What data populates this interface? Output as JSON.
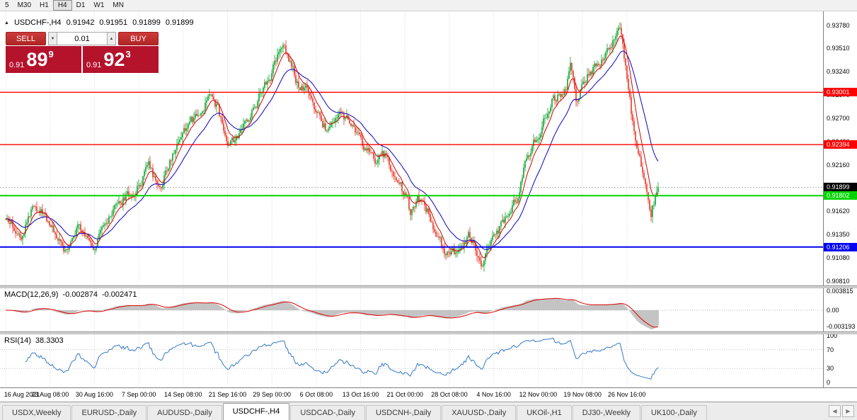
{
  "icons": {
    "title_marker": "▲",
    "spin_up": "▲",
    "spin_down": "▼",
    "scroll_left": "◀",
    "scroll_right": "▶"
  },
  "colors": {
    "candle_up": "#0aa32b",
    "candle_down": "#ea3323",
    "ma_fast": "#d40000",
    "ma_slow": "#0d00c4",
    "bid_badge": "#000000",
    "macd_hist": "#b0b0b0",
    "macd_signal": "#e00000",
    "rsi_line": "#3579c8",
    "sell_buy_button": "#cd3a3a",
    "price_box": "#b5122c",
    "grid": "#d9d9d9"
  },
  "toolbar": {
    "timeframes": [
      {
        "label": "5",
        "active": false
      },
      {
        "label": "M30",
        "active": false
      },
      {
        "label": "H1",
        "active": false
      },
      {
        "label": "H4",
        "active": true
      },
      {
        "label": "D1",
        "active": false
      },
      {
        "label": "W1",
        "active": false
      },
      {
        "label": "MN",
        "active": false
      }
    ]
  },
  "chart_title": {
    "symbol_tf": "USDCHF-,H4",
    "open": "0.91942",
    "high": "0.91951",
    "low": "0.91899",
    "close": "0.91899"
  },
  "trade_panel": {
    "sell_label": "SELL",
    "buy_label": "BUY",
    "volume": "0.01",
    "sell_price_main": "0.91",
    "sell_price_pips": "89",
    "sell_price_point": "9",
    "buy_price_main": "0.91",
    "buy_price_pips": "92",
    "buy_price_point": "3"
  },
  "price_axis": {
    "labels": [
      "0.93780",
      "0.93510",
      "0.93240",
      "0.92970",
      "0.92700",
      "0.92430",
      "0.92160",
      "0.91890",
      "0.91620",
      "0.91350",
      "0.91080",
      "0.90810"
    ]
  },
  "hlines": [
    {
      "price": 0.93001,
      "label": "0.93001",
      "color": "#ff0000",
      "width": 1.4
    },
    {
      "price": 0.92394,
      "label": "0.92394",
      "color": "#ff0000",
      "width": 1.4
    },
    {
      "price": 0.91802,
      "label": "0.91802",
      "color": "#00d500",
      "width": 2
    },
    {
      "price": 0.91206,
      "label": "0.91206",
      "color": "#0000f0",
      "width": 2
    }
  ],
  "current_price": {
    "price": 0.91899,
    "label": "0.91899",
    "badge_color": "#000000"
  },
  "macd": {
    "name": "MACD(12,26,9)",
    "value_main": "-0.002874",
    "value_signal": "-0.002471",
    "axis": [
      "0.003815",
      "0.00",
      "-0.003193"
    ]
  },
  "rsi": {
    "name": "RSI(14)",
    "value": "38.3303",
    "axis": [
      "100",
      "70",
      "30",
      "0"
    ],
    "levels": [
      70,
      30
    ]
  },
  "time_axis": {
    "labels": [
      "16 Aug 2021",
      "23 Aug 08:00",
      "30 Aug 16:00",
      "7 Sep 00:00",
      "14 Sep 08:00",
      "21 Sep 16:00",
      "29 Sep 00:00",
      "6 Oct 08:00",
      "13 Oct 16:00",
      "21 Oct 00:00",
      "28 Oct 08:00",
      "4 Nov 16:00",
      "12 Nov 00:00",
      "19 Nov 08:00",
      "26 Nov 16:00"
    ]
  },
  "tabs": {
    "items": [
      "USDX,Weekly",
      "EURUSD-,Daily",
      "AUDUSD-,Daily",
      "USDCHF-,H4",
      "USDCAD-,Daily",
      "USDCNH-,Daily",
      "XAUUSD-,Daily",
      "UKOil-,H1",
      "DJ30-,Weekly",
      "UK100-,Daily"
    ],
    "active_index": 3
  },
  "chart_data": {
    "type": "candlestick",
    "symbol": "USDCHF-",
    "timeframe": "H4",
    "bars": 462,
    "last_close": 0.91899,
    "price_range": [
      0.9076,
      0.9394
    ],
    "ma_fast_period": 8,
    "ma_slow_period": 24,
    "macd_axis_max": 0.00382,
    "anchors": [
      [
        0,
        0.9148
      ],
      [
        11,
        0.9138
      ],
      [
        21,
        0.9172
      ],
      [
        31,
        0.915
      ],
      [
        41,
        0.9118
      ],
      [
        51,
        0.9142
      ],
      [
        62,
        0.9122
      ],
      [
        71,
        0.9145
      ],
      [
        81,
        0.9172
      ],
      [
        94,
        0.919
      ],
      [
        101,
        0.9222
      ],
      [
        108,
        0.9185
      ],
      [
        116,
        0.9218
      ],
      [
        125,
        0.9258
      ],
      [
        136,
        0.9272
      ],
      [
        146,
        0.93
      ],
      [
        152,
        0.927
      ],
      [
        157,
        0.9242
      ],
      [
        166,
        0.925
      ],
      [
        176,
        0.9285
      ],
      [
        188,
        0.9322
      ],
      [
        196,
        0.936
      ],
      [
        206,
        0.9312
      ],
      [
        213,
        0.93
      ],
      [
        220,
        0.9272
      ],
      [
        228,
        0.9256
      ],
      [
        236,
        0.9282
      ],
      [
        243,
        0.9266
      ],
      [
        251,
        0.9242
      ],
      [
        261,
        0.9218
      ],
      [
        268,
        0.9228
      ],
      [
        276,
        0.9196
      ],
      [
        282,
        0.9183
      ],
      [
        286,
        0.916
      ],
      [
        291,
        0.9178
      ],
      [
        298,
        0.9162
      ],
      [
        306,
        0.913
      ],
      [
        314,
        0.9108
      ],
      [
        321,
        0.9122
      ],
      [
        328,
        0.9133
      ],
      [
        333,
        0.9118
      ],
      [
        336,
        0.9098
      ],
      [
        345,
        0.9128
      ],
      [
        353,
        0.9152
      ],
      [
        361,
        0.9176
      ],
      [
        368,
        0.9222
      ],
      [
        377,
        0.9255
      ],
      [
        386,
        0.929
      ],
      [
        396,
        0.9302
      ],
      [
        399,
        0.9328
      ],
      [
        403,
        0.9288
      ],
      [
        408,
        0.9312
      ],
      [
        416,
        0.933
      ],
      [
        423,
        0.9342
      ],
      [
        431,
        0.9368
      ],
      [
        434,
        0.9376
      ],
      [
        438,
        0.933
      ],
      [
        444,
        0.9252
      ],
      [
        451,
        0.92
      ],
      [
        456,
        0.9162
      ],
      [
        461,
        0.919
      ]
    ]
  }
}
